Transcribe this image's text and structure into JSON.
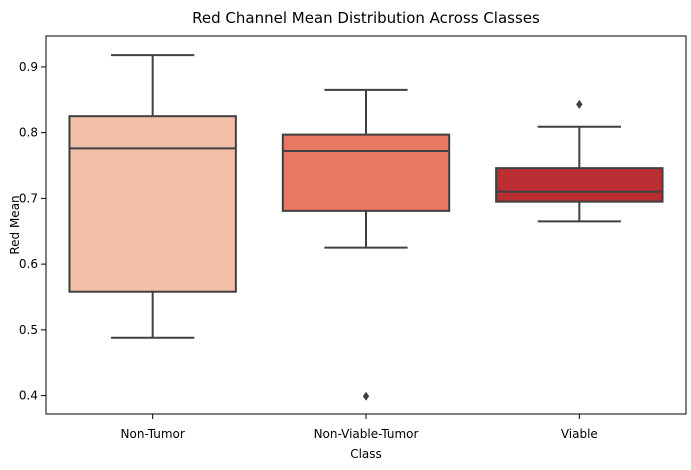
{
  "chart_data": {
    "type": "box",
    "title": "Red Channel Mean Distribution Across Classes",
    "xlabel": "Class",
    "ylabel": "Red Mean",
    "ylim": [
      0.372,
      0.947
    ],
    "yticks": [
      0.4,
      0.5,
      0.6,
      0.7,
      0.8,
      0.9
    ],
    "ytick_labels": [
      "0.4",
      "0.5",
      "0.6",
      "0.7",
      "0.8",
      "0.9"
    ],
    "grid": false,
    "categories": [
      "Non-Tumor",
      "Non-Viable-Tumor",
      "Viable"
    ],
    "boxes": [
      {
        "category": "Non-Tumor",
        "whisker_low": 0.488,
        "q1": 0.558,
        "median": 0.776,
        "q3": 0.825,
        "whisker_high": 0.918,
        "outliers": [],
        "color": "#f2bfa9"
      },
      {
        "category": "Non-Viable-Tumor",
        "whisker_low": 0.625,
        "q1": 0.681,
        "median": 0.772,
        "q3": 0.797,
        "whisker_high": 0.865,
        "outliers": [
          0.399
        ],
        "color": "#e87862"
      },
      {
        "category": "Viable",
        "whisker_low": 0.665,
        "q1": 0.695,
        "median": 0.71,
        "q3": 0.746,
        "whisker_high": 0.809,
        "outliers": [
          0.843
        ],
        "color": "#b92d33"
      }
    ],
    "line_color": "#404040"
  }
}
